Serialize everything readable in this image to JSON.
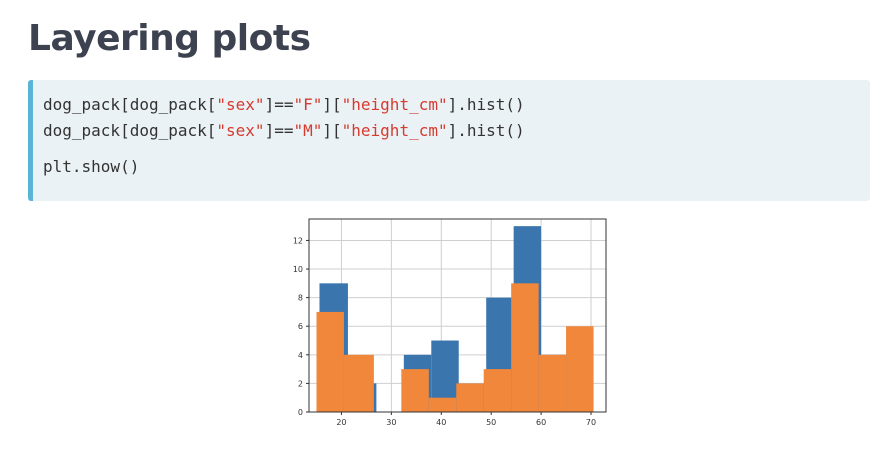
{
  "slide": {
    "title": "Layering plots"
  },
  "code": {
    "l1": {
      "a": "dog_pack[dog_pack[",
      "b": "\"sex\"",
      "c": "]==",
      "d": "\"F\"",
      "e": "][",
      "f": "\"height_cm\"",
      "g": "].hist()"
    },
    "l2": {
      "a": "dog_pack[dog_pack[",
      "b": "\"sex\"",
      "c": "]==",
      "d": "\"M\"",
      "e": "][",
      "f": "\"height_cm\"",
      "g": "].hist()"
    },
    "l3": "plt.show()"
  },
  "chart_data": {
    "type": "bar",
    "grid": true,
    "xlim": [
      13.5,
      73
    ],
    "ylim": [
      0,
      13.5
    ],
    "xticks": [
      20,
      30,
      40,
      50,
      60,
      70
    ],
    "yticks": [
      0,
      2,
      4,
      6,
      8,
      10,
      12
    ],
    "series": [
      {
        "color": "#3a75ad",
        "bins": [
          15.6,
          21.3,
          27.0,
          32.5,
          38.0,
          43.5,
          49.0,
          54.5,
          60.0,
          65.5,
          70.5
        ],
        "values": [
          9,
          2,
          0,
          4,
          5,
          2,
          8,
          13,
          4,
          5
        ]
      },
      {
        "color": "#f0873a",
        "bins": [
          15.0,
          20.5,
          26.5,
          32.0,
          37.5,
          43.0,
          48.5,
          54.0,
          59.5,
          65.0,
          70.5
        ],
        "values": [
          7,
          4,
          0,
          3,
          1,
          2,
          3,
          9,
          4,
          6
        ]
      }
    ]
  }
}
